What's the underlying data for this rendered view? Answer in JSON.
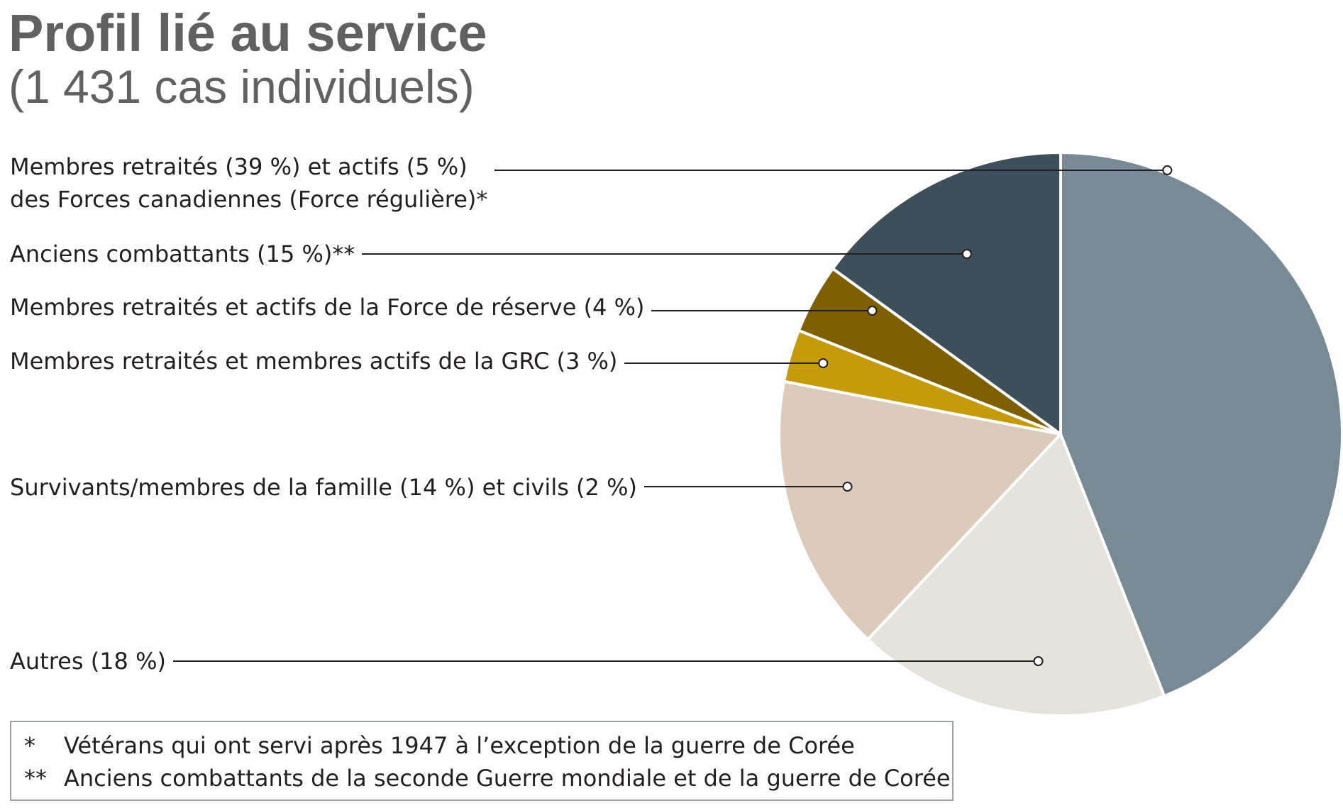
{
  "chart_data": {
    "type": "pie",
    "title": "Profil lié au service",
    "subtitle": "(1 431 cas individuels)",
    "slices": [
      {
        "label": "Membres retraités (39 %) et actifs (5 %)",
        "label2": "des Forces canadiennes (Force régulière)*",
        "value": 44,
        "color": "#778a96"
      },
      {
        "label": "Autres (18 %)",
        "value": 18,
        "color": "#e6e2dc"
      },
      {
        "label": "Survivants/membres de la famille (14 %) et civils (2 %)",
        "value": 16,
        "color": "#dccbbb"
      },
      {
        "label": "Membres retraités et membres actifs de la GRC (3 %)",
        "value": 3,
        "color": "#c59a0c"
      },
      {
        "label": "Membres retraités et actifs de la Force de réserve (4 %)",
        "value": 4,
        "color": "#7e6002"
      },
      {
        "label": "Anciens combattants (15 %)**",
        "value": 15,
        "color": "#3d4f5a"
      }
    ],
    "start_angle_deg": 0,
    "direction": "clockwise",
    "footnotes": [
      {
        "mark": "*",
        "text": "Vétérans qui ont servi après 1947 à l’exception de la guerre de Corée"
      },
      {
        "mark": "**",
        "text": "Anciens combattants de la seconde Guerre mondiale et de la guerre de Corée"
      }
    ]
  }
}
